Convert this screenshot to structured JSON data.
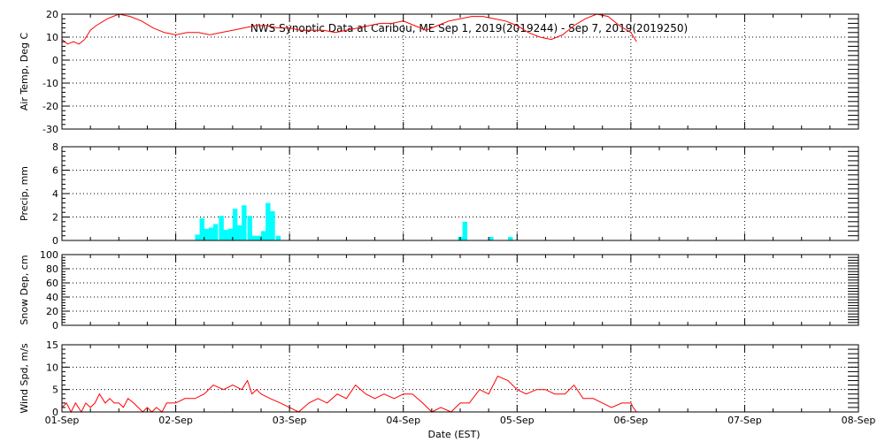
{
  "chart_data": {
    "type": "line",
    "title": "NWS Synoptic Data at Caribou, ME   Sep  1, 2019(2019244) - Sep  7, 2019(2019250)",
    "xlabel": "Date (EST)",
    "x_range_days": [
      0,
      7
    ],
    "x_ticks": [
      "01-Sep",
      "02-Sep",
      "03-Sep",
      "04-Sep",
      "05-Sep",
      "06-Sep",
      "07-Sep",
      "08-Sep"
    ],
    "panels": [
      {
        "id": "air-temp",
        "type": "line",
        "ylabel": "Air Temp, Deg C",
        "ylim": [
          -30,
          20
        ],
        "y_ticks": [
          "20",
          "10",
          "0",
          "-10",
          "-20",
          "-30"
        ],
        "y_tick_values": [
          20,
          10,
          0,
          -10,
          -20,
          -30
        ],
        "color": "#ff0000",
        "series": [
          {
            "x": [
              0,
              0.05,
              0.1,
              0.15,
              0.2,
              0.25,
              0.3,
              0.4,
              0.5,
              0.6,
              0.7,
              0.8,
              0.9,
              1.0,
              1.1,
              1.2,
              1.3,
              1.4,
              1.5,
              1.6,
              1.7,
              1.8,
              1.9,
              2.0,
              2.1,
              2.2,
              2.3,
              2.4,
              2.5,
              2.6,
              2.7,
              2.8,
              2.9,
              3.0,
              3.1,
              3.2,
              3.3,
              3.4,
              3.5,
              3.6,
              3.7,
              3.8,
              3.9,
              4.0,
              4.1,
              4.2,
              4.3,
              4.4,
              4.5,
              4.6,
              4.7,
              4.8,
              4.9,
              5.0,
              5.05
            ],
            "y": [
              9,
              7,
              8,
              7,
              9,
              13,
              15,
              18,
              21,
              19,
              17,
              14,
              12,
              11,
              12,
              12,
              11,
              12,
              13,
              14,
              15,
              15,
              14,
              14,
              13,
              13,
              13,
              12,
              13,
              14,
              15,
              16,
              16,
              17,
              15,
              13,
              15,
              17,
              18,
              19,
              19,
              18,
              17,
              15,
              12,
              10,
              9,
              11,
              15,
              18,
              21,
              19,
              15,
              12,
              8
            ]
          }
        ]
      },
      {
        "id": "precip",
        "type": "bar",
        "ylabel": "Precip, mm",
        "ylim": [
          0,
          8
        ],
        "y_ticks": [
          "8",
          "6",
          "4",
          "2",
          "0"
        ],
        "y_tick_values": [
          8,
          6,
          4,
          2,
          0
        ],
        "color": "#00ffff",
        "bar_width_days": 0.042,
        "series": [
          {
            "x": [
              1.17,
              1.21,
              1.25,
              1.29,
              1.33,
              1.38,
              1.42,
              1.46,
              1.5,
              1.54,
              1.58,
              1.63,
              1.67,
              1.71,
              1.75,
              1.79,
              1.83,
              1.88,
              1.92,
              3.48,
              3.52,
              3.75,
              3.92
            ],
            "y": [
              0.5,
              1.9,
              1.0,
              1.1,
              1.4,
              2.1,
              0.9,
              1.0,
              2.7,
              1.3,
              3.0,
              2.1,
              0.4,
              0.4,
              0.8,
              3.2,
              2.5,
              0.4,
              0,
              0.3,
              1.6,
              0.3,
              0.3
            ]
          }
        ]
      },
      {
        "id": "snow-depth",
        "type": "line",
        "ylabel": "Snow Dep, cm",
        "ylim": [
          0,
          100
        ],
        "y_ticks": [
          "100",
          "80",
          "60",
          "40",
          "20",
          "0"
        ],
        "y_tick_values": [
          100,
          80,
          60,
          40,
          20,
          0
        ],
        "color": "#ff0000",
        "series": [
          {
            "x": [],
            "y": []
          }
        ]
      },
      {
        "id": "wind-speed",
        "type": "line",
        "ylabel": "Wind Spd, m/s",
        "ylim": [
          0,
          15
        ],
        "y_ticks": [
          "15",
          "10",
          "5",
          "0"
        ],
        "y_tick_values": [
          15,
          10,
          5,
          0
        ],
        "color": "#ff0000",
        "series": [
          {
            "x": [
              0,
              0.04,
              0.08,
              0.12,
              0.17,
              0.21,
              0.25,
              0.29,
              0.33,
              0.38,
              0.42,
              0.46,
              0.5,
              0.54,
              0.58,
              0.63,
              0.67,
              0.71,
              0.75,
              0.79,
              0.83,
              0.88,
              0.92,
              0.96,
              1.0,
              1.08,
              1.17,
              1.25,
              1.33,
              1.42,
              1.5,
              1.58,
              1.63,
              1.67,
              1.71,
              1.75,
              1.83,
              1.92,
              2.0,
              2.08,
              2.17,
              2.25,
              2.33,
              2.42,
              2.5,
              2.58,
              2.67,
              2.75,
              2.83,
              2.92,
              3.0,
              3.08,
              3.17,
              3.25,
              3.33,
              3.42,
              3.5,
              3.58,
              3.67,
              3.75,
              3.83,
              3.92,
              4.0,
              4.08,
              4.17,
              4.25,
              4.33,
              4.42,
              4.5,
              4.58,
              4.67,
              4.75,
              4.83,
              4.92,
              5.0,
              5.02,
              5.05
            ],
            "y": [
              1,
              2,
              0,
              2,
              0,
              2,
              1,
              2,
              4,
              2,
              3,
              2,
              2,
              1,
              3,
              2,
              1,
              0,
              1,
              0,
              1,
              0,
              2,
              2,
              2,
              3,
              3,
              4,
              6,
              5,
              6,
              5,
              7,
              4,
              5,
              4,
              3,
              2,
              1,
              0,
              2,
              3,
              2,
              4,
              3,
              6,
              4,
              3,
              4,
              3,
              4,
              4,
              2,
              0,
              1,
              0,
              2,
              2,
              5,
              4,
              8,
              7,
              5,
              4,
              5,
              5,
              4,
              4,
              6,
              3,
              3,
              2,
              1,
              2,
              2,
              1,
              0
            ]
          }
        ]
      }
    ]
  }
}
